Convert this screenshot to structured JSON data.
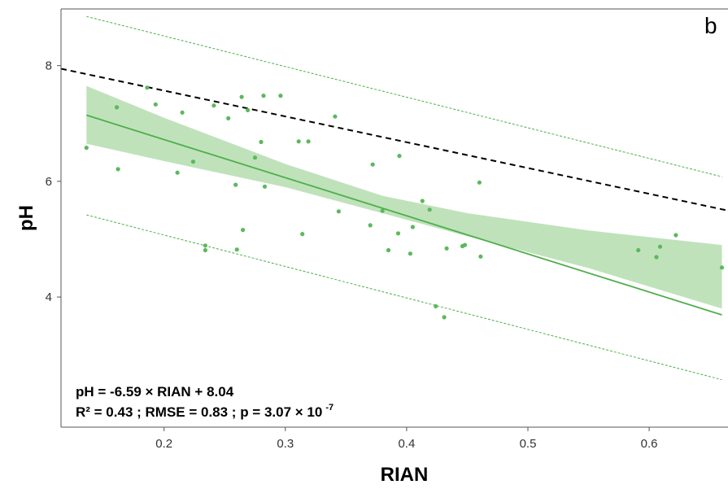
{
  "chart_data": {
    "type": "scatter",
    "panel_label": "b",
    "xlabel": "RIAN",
    "ylabel": "pH",
    "xlim": [
      0.115,
      0.665
    ],
    "ylim": [
      1.75,
      8.98
    ],
    "xticks": [
      0.2,
      0.3,
      0.4,
      0.5,
      0.6
    ],
    "xtick_labels": [
      "0.2",
      "0.3",
      "0.4",
      "0.5",
      "0.6"
    ],
    "yticks": [
      4,
      6,
      8
    ],
    "ytick_labels": [
      "4",
      "6",
      "8"
    ],
    "grid": false,
    "colors": {
      "points": "#5cb85c",
      "fit": "#4daf4a",
      "band": "#bfe2bb",
      "ref_line": "#000000",
      "frame": "#555555"
    },
    "points": [
      {
        "x": 0.136,
        "y": 6.58
      },
      {
        "x": 0.161,
        "y": 7.28
      },
      {
        "x": 0.162,
        "y": 6.21
      },
      {
        "x": 0.186,
        "y": 7.62
      },
      {
        "x": 0.193,
        "y": 7.33
      },
      {
        "x": 0.211,
        "y": 6.15
      },
      {
        "x": 0.215,
        "y": 7.19
      },
      {
        "x": 0.224,
        "y": 6.34
      },
      {
        "x": 0.234,
        "y": 4.89
      },
      {
        "x": 0.234,
        "y": 4.81
      },
      {
        "x": 0.241,
        "y": 7.31
      },
      {
        "x": 0.253,
        "y": 7.09
      },
      {
        "x": 0.259,
        "y": 5.94
      },
      {
        "x": 0.26,
        "y": 4.82
      },
      {
        "x": 0.264,
        "y": 7.46
      },
      {
        "x": 0.265,
        "y": 5.16
      },
      {
        "x": 0.269,
        "y": 7.23
      },
      {
        "x": 0.275,
        "y": 6.41
      },
      {
        "x": 0.28,
        "y": 6.68
      },
      {
        "x": 0.282,
        "y": 7.48
      },
      {
        "x": 0.283,
        "y": 5.91
      },
      {
        "x": 0.296,
        "y": 7.48
      },
      {
        "x": 0.311,
        "y": 6.69
      },
      {
        "x": 0.314,
        "y": 5.09
      },
      {
        "x": 0.319,
        "y": 6.69
      },
      {
        "x": 0.341,
        "y": 7.12
      },
      {
        "x": 0.344,
        "y": 5.48
      },
      {
        "x": 0.37,
        "y": 5.24
      },
      {
        "x": 0.372,
        "y": 6.29
      },
      {
        "x": 0.38,
        "y": 5.49
      },
      {
        "x": 0.385,
        "y": 4.81
      },
      {
        "x": 0.393,
        "y": 5.1
      },
      {
        "x": 0.394,
        "y": 6.44
      },
      {
        "x": 0.403,
        "y": 4.75
      },
      {
        "x": 0.405,
        "y": 5.21
      },
      {
        "x": 0.413,
        "y": 5.66
      },
      {
        "x": 0.419,
        "y": 5.51
      },
      {
        "x": 0.424,
        "y": 3.84
      },
      {
        "x": 0.431,
        "y": 3.65
      },
      {
        "x": 0.433,
        "y": 4.84
      },
      {
        "x": 0.446,
        "y": 4.88
      },
      {
        "x": 0.448,
        "y": 4.9
      },
      {
        "x": 0.46,
        "y": 5.98
      },
      {
        "x": 0.461,
        "y": 4.7
      },
      {
        "x": 0.591,
        "y": 4.81
      },
      {
        "x": 0.606,
        "y": 4.69
      },
      {
        "x": 0.609,
        "y": 4.87
      },
      {
        "x": 0.622,
        "y": 5.07
      },
      {
        "x": 0.66,
        "y": 4.51
      }
    ],
    "fit": {
      "slope": -6.59,
      "intercept": 8.04,
      "x_range": [
        0.136,
        0.66
      ]
    },
    "confidence_band": {
      "x": [
        0.136,
        0.2,
        0.3,
        0.38,
        0.45,
        0.55,
        0.66
      ],
      "lower": [
        6.65,
        6.35,
        5.9,
        5.45,
        5.05,
        4.5,
        3.8
      ],
      "upper": [
        7.65,
        7.1,
        6.3,
        5.75,
        5.45,
        5.15,
        4.9
      ]
    },
    "prediction_interval": {
      "x": [
        0.136,
        0.66
      ],
      "lower": [
        5.42,
        2.57
      ],
      "upper": [
        8.85,
        6.08
      ]
    },
    "reference_line": {
      "slope": -4.46,
      "intercept": 8.46,
      "x_range": [
        0.115,
        0.665
      ]
    },
    "annotations": {
      "equation": "pH = -6.59 × RIAN + 8.04",
      "stats_main": "R² = 0.43 ; RMSE = 0.83 ; p = 3.07 × 10",
      "stats_exp": "-7"
    }
  }
}
